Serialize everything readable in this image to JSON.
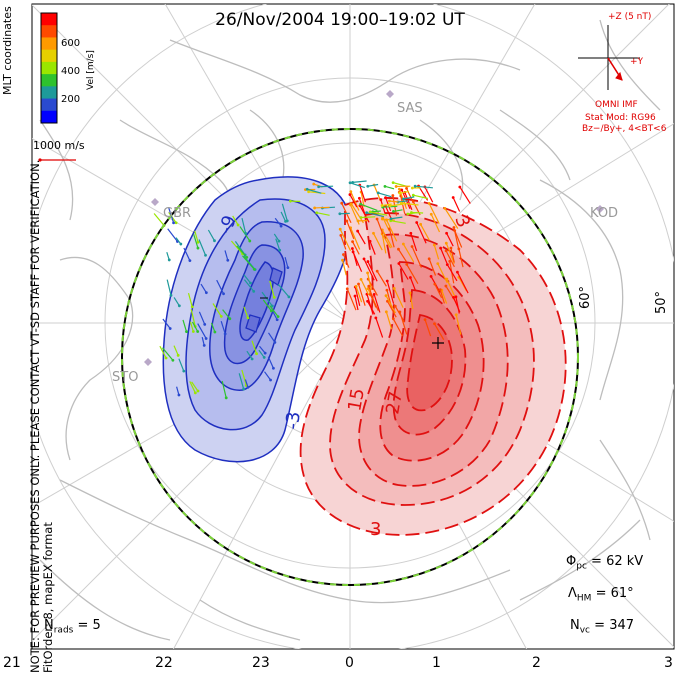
{
  "title": "26/Nov/2004  19:00–19:02  UT",
  "note": {
    "line1": "NOTE: FOR PREVIEW PURPOSES ONLY. PLEASE CONTACT VT-SD STAFF FOR VERIFICATION.",
    "line2": "FitOrder: 8, mapEX format"
  },
  "colorbar": {
    "coords_label": "MLT coordinates",
    "unit_label": "Vel [m/s]",
    "ticks": [
      "600",
      "400",
      "200"
    ],
    "colors": [
      "#ff0000",
      "#ff4a00",
      "#ff9a00",
      "#e6d000",
      "#9ae600",
      "#2ec22e",
      "#1e9a9a",
      "#2a4ad0",
      "#0000ff"
    ],
    "scale_label": "1000 m/s"
  },
  "imf": {
    "z_label": "+Z (5 nT)",
    "y_label": "+Y",
    "source": "OMNI IMF",
    "model": "Stat Mod: RG96",
    "condition": "Bz−/By+, 4<BT<6",
    "color": "#e00000"
  },
  "sites": [
    "SAS",
    "GBR",
    "KOD",
    "STO"
  ],
  "lat_labels": [
    "60°",
    "50°"
  ],
  "contours": {
    "neg_color": "#1f2fc0",
    "pos_color": "#e01010",
    "labels": [
      "-9",
      "-3",
      "3",
      "15",
      "27",
      "3"
    ]
  },
  "stats": {
    "phi_pc": "62 kV",
    "lambda_hm": "61°",
    "n_vc": "347",
    "n_rads": "5"
  },
  "mlt_axis": [
    "21",
    "22",
    "23",
    "0",
    "1",
    "2",
    "3"
  ]
}
